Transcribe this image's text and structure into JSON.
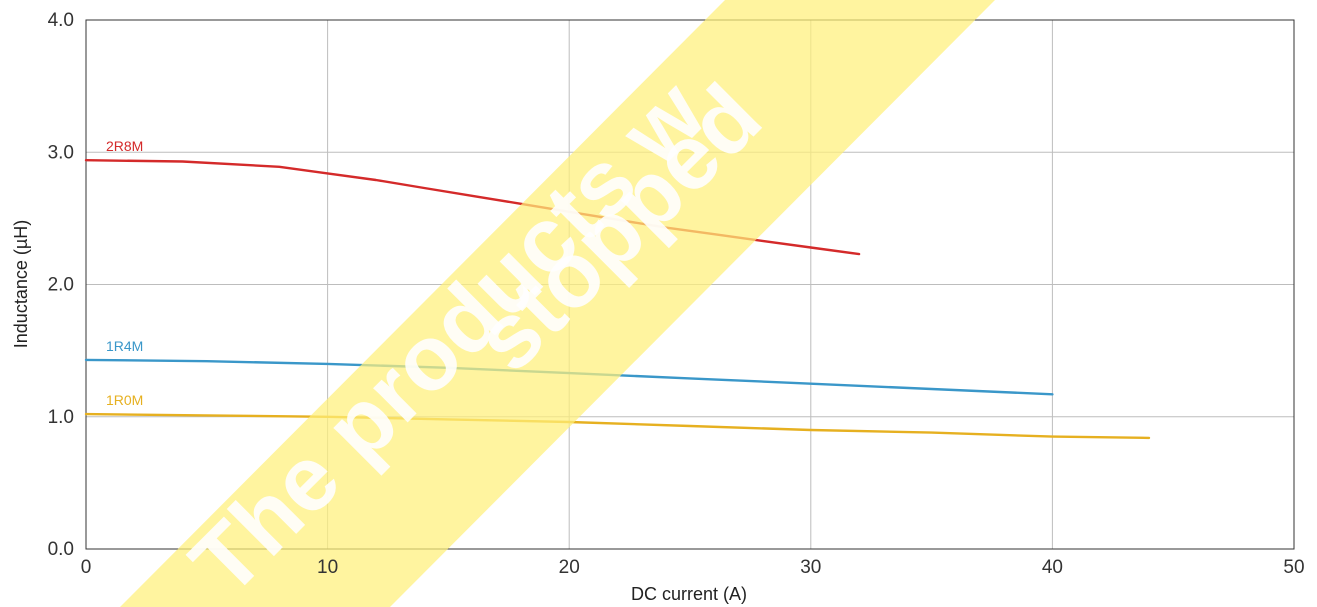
{
  "chart_data": {
    "type": "line",
    "xlabel": "DC current (A)",
    "ylabel": "Inductance (µH)",
    "xlim": [
      0,
      50
    ],
    "ylim": [
      0,
      4
    ],
    "x_ticks": [
      "0",
      "10",
      "20",
      "30",
      "40",
      "50"
    ],
    "y_ticks": [
      "0.0",
      "1.0",
      "2.0",
      "3.0",
      "4.0"
    ],
    "grid": true,
    "series": [
      {
        "name": "2R8M",
        "color": "#d42a2a",
        "x": [
          0,
          4,
          8,
          10,
          12,
          14,
          16,
          18,
          20,
          22,
          24,
          26,
          28,
          30,
          32
        ],
        "y": [
          2.94,
          2.93,
          2.89,
          2.84,
          2.79,
          2.73,
          2.67,
          2.61,
          2.55,
          2.49,
          2.43,
          2.38,
          2.33,
          2.28,
          2.23
        ]
      },
      {
        "name": "1R4M",
        "color": "#3a97c9",
        "x": [
          0,
          5,
          10,
          15,
          20,
          25,
          30,
          35,
          40
        ],
        "y": [
          1.43,
          1.42,
          1.4,
          1.37,
          1.33,
          1.29,
          1.25,
          1.21,
          1.17
        ]
      },
      {
        "name": "1R0M",
        "color": "#e6b020",
        "x": [
          0,
          5,
          10,
          15,
          20,
          25,
          30,
          35,
          40,
          44
        ],
        "y": [
          1.02,
          1.01,
          1.0,
          0.98,
          0.96,
          0.93,
          0.9,
          0.88,
          0.85,
          0.84
        ]
      }
    ]
  },
  "watermark": {
    "lines": [
      "The products w",
      "stopped"
    ],
    "color": "#fff07a"
  }
}
